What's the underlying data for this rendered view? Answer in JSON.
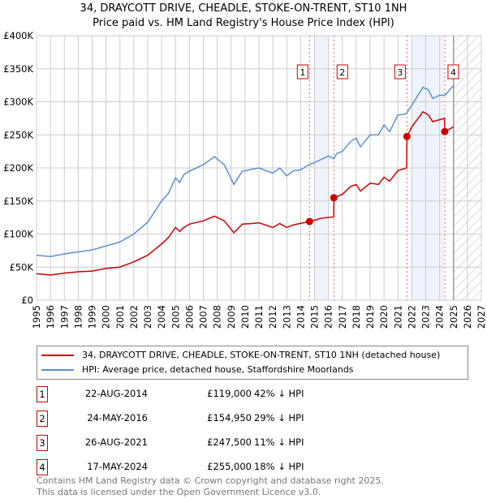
{
  "title": "34, DRAYCOTT DRIVE, CHEADLE, STOKE-ON-TRENT, ST10 1NH",
  "subtitle": "Price paid vs. HM Land Registry's House Price Index (HPI)",
  "chart_data": {
    "type": "line",
    "xlim": [
      1995,
      2027
    ],
    "ylim": [
      0,
      400000
    ],
    "x_ticks": [
      "1995",
      "1996",
      "1997",
      "1998",
      "1999",
      "2000",
      "2001",
      "2002",
      "2003",
      "2004",
      "2005",
      "2006",
      "2007",
      "2008",
      "2009",
      "2010",
      "2011",
      "2012",
      "2013",
      "2014",
      "2015",
      "2016",
      "2017",
      "2018",
      "2019",
      "2020",
      "2021",
      "2022",
      "2023",
      "2024",
      "2025",
      "2026",
      "2027"
    ],
    "y_ticks": [
      {
        "v": 0,
        "label": "£0"
      },
      {
        "v": 50000,
        "label": "£50K"
      },
      {
        "v": 100000,
        "label": "£100K"
      },
      {
        "v": 150000,
        "label": "£150K"
      },
      {
        "v": 200000,
        "label": "£200K"
      },
      {
        "v": 250000,
        "label": "£250K"
      },
      {
        "v": 300000,
        "label": "£300K"
      },
      {
        "v": 350000,
        "label": "£350K"
      },
      {
        "v": 400000,
        "label": "£400K"
      }
    ],
    "grid": true,
    "shaded_periods": [
      [
        2015,
        2016
      ],
      [
        2022,
        2024.3
      ]
    ],
    "forecast_hatched_from": 2025,
    "series": [
      {
        "name": "34, DRAYCOTT DRIVE, CHEADLE, STOKE-ON-TRENT, ST10 1NH (detached house)",
        "color": "#cc0000",
        "x": [
          1995,
          1996,
          1997,
          1998,
          1999,
          2000,
          2001,
          2002,
          2003,
          2004,
          2004.5,
          2005,
          2005.3,
          2005.6,
          2006,
          2007,
          2007.8,
          2008.5,
          2009.2,
          2009.8,
          2010.5,
          2011,
          2012,
          2012.5,
          2013,
          2013.5,
          2014.64,
          2015.5,
          2016.38,
          2016.4,
          2017,
          2017.6,
          2018,
          2018.3,
          2019,
          2019.6,
          2020,
          2020.4,
          2021,
          2021.63,
          2021.65,
          2022,
          2022.8,
          2023.2,
          2023.5,
          2024,
          2024.35,
          2024.38,
          2025
        ],
        "y": [
          40000,
          38000,
          41000,
          43000,
          44000,
          48000,
          50000,
          58000,
          68000,
          85000,
          95000,
          110000,
          104000,
          110000,
          115000,
          120000,
          127000,
          120000,
          102000,
          115000,
          116000,
          117000,
          110000,
          116000,
          110000,
          114000,
          119000,
          124000,
          126000,
          154950,
          160000,
          172000,
          175000,
          165000,
          177000,
          175000,
          186000,
          180000,
          196000,
          200000,
          247500,
          262000,
          285000,
          280000,
          270000,
          273000,
          275000,
          255000,
          262000
        ]
      },
      {
        "name": "HPI: Average price, detached house, Staffordshire Moorlands",
        "color": "#5b8fd4",
        "x": [
          1995,
          1996,
          1997,
          1998,
          1999,
          2000,
          2001,
          2002,
          2003,
          2004,
          2004.5,
          2005,
          2005.3,
          2005.6,
          2006,
          2007,
          2007.8,
          2008.5,
          2009.2,
          2009.8,
          2010.5,
          2011,
          2012,
          2012.5,
          2013,
          2013.5,
          2014,
          2014.6,
          2015,
          2016,
          2016.4,
          2016.6,
          2017,
          2017.6,
          2018,
          2018.3,
          2019,
          2019.6,
          2020,
          2020.4,
          2021,
          2021.6,
          2022,
          2022.8,
          2023.2,
          2023.5,
          2024,
          2024.4,
          2025
        ],
        "y": [
          68000,
          66000,
          70000,
          73000,
          76000,
          82000,
          88000,
          100000,
          118000,
          150000,
          162000,
          185000,
          178000,
          190000,
          195000,
          205000,
          217000,
          205000,
          175000,
          195000,
          198000,
          200000,
          192000,
          200000,
          188000,
          196000,
          197000,
          205000,
          208000,
          218000,
          214000,
          222000,
          225000,
          240000,
          245000,
          232000,
          250000,
          250000,
          265000,
          255000,
          280000,
          282000,
          295000,
          322000,
          318000,
          305000,
          310000,
          310000,
          325000
        ]
      }
    ],
    "sales": [
      {
        "id": "1",
        "x": 2014.64,
        "y": 119000,
        "date": "22-AUG-2014",
        "price": "£119,000",
        "diff": "42% ↓ HPI"
      },
      {
        "id": "2",
        "x": 2016.39,
        "y": 154950,
        "date": "24-MAY-2016",
        "price": "£154,950",
        "diff": "29% ↓ HPI"
      },
      {
        "id": "3",
        "x": 2021.65,
        "y": 247500,
        "date": "26-AUG-2021",
        "price": "£247,500",
        "diff": "11% ↓ HPI"
      },
      {
        "id": "4",
        "x": 2024.37,
        "y": 255000,
        "date": "17-MAY-2024",
        "price": "£255,000",
        "diff": "18% ↓ HPI"
      }
    ]
  },
  "footer": {
    "line1": "Contains HM Land Registry data © Crown copyright and database right 2025.",
    "line2": "This data is licensed under the Open Government Licence v3.0."
  }
}
